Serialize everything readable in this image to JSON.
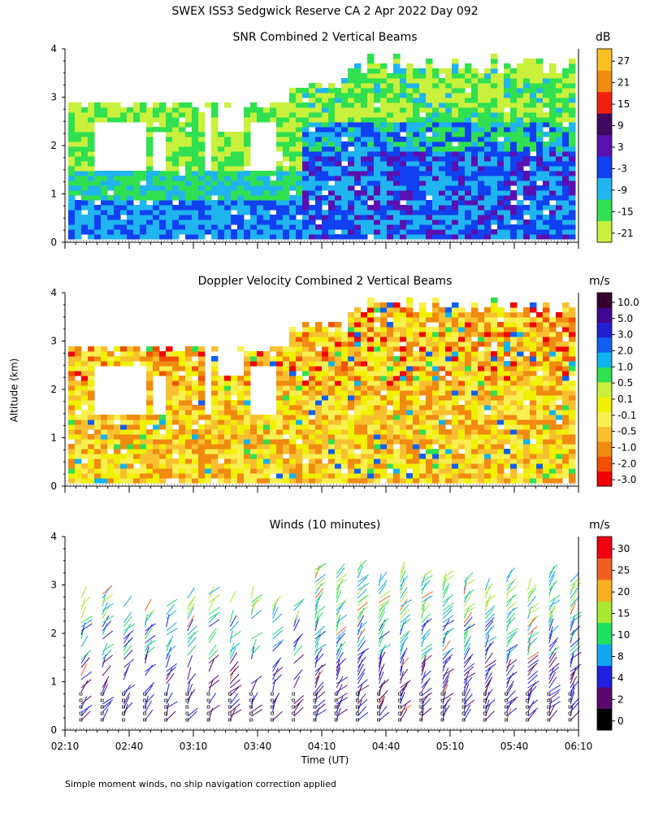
{
  "title": "SWEX ISS3 Sedgwick Reserve CA   2 Apr 2022 Day 092",
  "footnote": "Simple moment winds, no ship navigation correction applied",
  "shared_ylabel": "Altitude (km)",
  "shared_xlabel": "Time (UT)",
  "colors": {
    "snr_scale": [
      "#c8f03c",
      "#30e050",
      "#20b4f0",
      "#1040f0",
      "#5a10b0",
      "#400860",
      "#f02010",
      "#f08a10",
      "#f8c020"
    ],
    "vel_scale": [
      "#f00000",
      "#f05000",
      "#f08a10",
      "#f8c030",
      "#f8f050",
      "#f0f000",
      "#c8f03c",
      "#30e050",
      "#10b4f0",
      "#1060f0",
      "#2020d0",
      "#400890",
      "#380030"
    ],
    "wind_scale": [
      "#000000",
      "#5a0870",
      "#2020e0",
      "#10a8f0",
      "#20e060",
      "#a8e830",
      "#f8b020",
      "#f06020",
      "#f00010"
    ]
  },
  "chart_data": [
    {
      "type": "heatmap",
      "title": "SNR Combined 2 Vertical Beams",
      "unit": "dB",
      "xlabel": "",
      "ylabel": "",
      "ylim": [
        0,
        4
      ],
      "yticks": [
        "0",
        "1",
        "2",
        "3",
        "4"
      ],
      "colorbar_labels": [
        "27",
        "21",
        "15",
        "9",
        "3",
        "-3",
        "-9",
        "-15",
        "-21"
      ]
    },
    {
      "type": "heatmap",
      "title": "Doppler Velocity Combined 2 Vertical Beams",
      "unit": "m/s",
      "xlabel": "",
      "ylabel": "",
      "ylim": [
        0,
        4
      ],
      "yticks": [
        "0",
        "1",
        "2",
        "3",
        "4"
      ],
      "colorbar_labels": [
        "10.0",
        "5.0",
        "3.0",
        "2.0",
        "1.0",
        "0.5",
        "0.1",
        "-0.1",
        "-0.5",
        "-1.0",
        "-2.0",
        "-3.0"
      ]
    },
    {
      "type": "scatter",
      "title": "Winds (10 minutes)",
      "unit": "m/s",
      "xlabel": "Time (UT)",
      "ylabel": "",
      "ylim": [
        0,
        4
      ],
      "yticks": [
        "0",
        "1",
        "2",
        "3",
        "4"
      ],
      "xticks": [
        "02:10",
        "02:40",
        "03:10",
        "03:40",
        "04:10",
        "04:40",
        "05:10",
        "05:40",
        "06:10"
      ],
      "colorbar_labels": [
        "30",
        "25",
        "20",
        "15",
        "10",
        "8",
        "4",
        "2",
        "0"
      ]
    }
  ]
}
